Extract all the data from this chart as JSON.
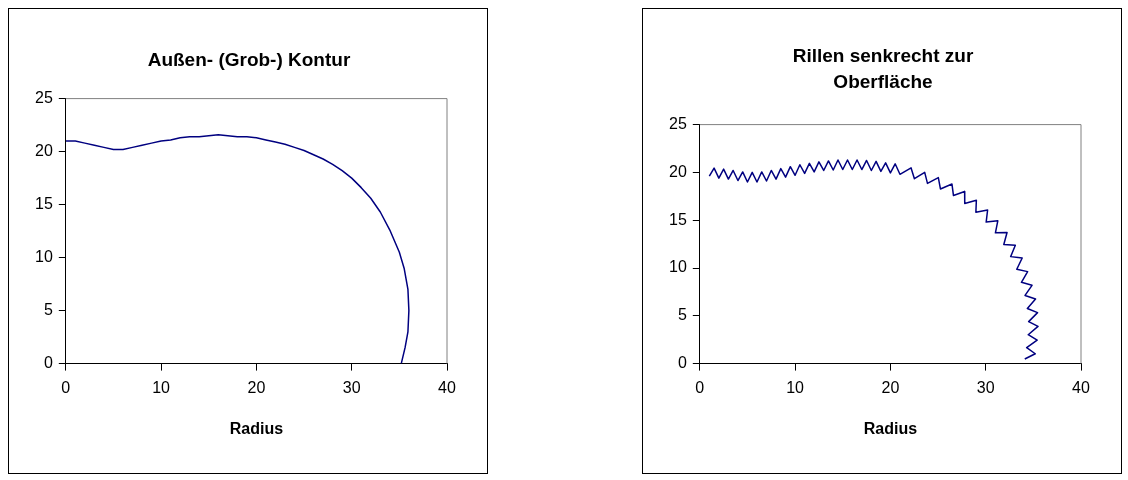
{
  "chart_data": [
    {
      "type": "line",
      "title": "Außen- (Grob-) Kontur",
      "xlabel": "Radius",
      "xlim": [
        0,
        40
      ],
      "xticks": [
        0,
        10,
        20,
        30,
        40
      ],
      "ylim": [
        0,
        25
      ],
      "yticks": [
        0,
        5,
        10,
        15,
        20,
        25
      ],
      "grid": false,
      "legend": false,
      "marker": "none",
      "line_style": "solid",
      "series": [
        {
          "color": "#000080",
          "x": [
            0,
            1,
            2,
            3,
            4,
            5,
            6,
            7,
            8,
            9,
            10,
            11,
            12,
            13,
            14,
            15,
            16,
            17,
            18,
            19,
            20,
            21,
            22,
            23,
            24,
            25,
            26,
            27,
            28,
            29,
            30,
            31,
            32,
            33,
            34,
            35,
            35.5,
            35.9,
            36,
            35.9,
            35.6,
            35.2
          ],
          "values": [
            21,
            21,
            20.8,
            20.6,
            20.4,
            20.2,
            20.2,
            20.4,
            20.6,
            20.8,
            21,
            21.1,
            21.3,
            21.4,
            21.4,
            21.5,
            21.6,
            21.5,
            21.4,
            21.4,
            21.3,
            21.1,
            20.9,
            20.7,
            20.4,
            20.1,
            19.7,
            19.3,
            18.8,
            18.2,
            17.5,
            16.6,
            15.6,
            14.3,
            12.6,
            10.5,
            9,
            7,
            5,
            3,
            1.5,
            0
          ]
        }
      ]
    },
    {
      "type": "line",
      "title": "Rillen senkrecht zur Oberfläche",
      "xlabel": "Radius",
      "xlim": [
        0,
        40
      ],
      "xticks": [
        0,
        10,
        20,
        30,
        40
      ],
      "ylim": [
        0,
        25
      ],
      "yticks": [
        0,
        5,
        10,
        15,
        20,
        25
      ],
      "grid": false,
      "legend": false,
      "marker": "none",
      "line_style": "solid",
      "series": [
        {
          "color": "#000080",
          "x": [
            1.0,
            1.5,
            2.0,
            2.5,
            3.0,
            3.5,
            4.0,
            4.5,
            5.0,
            5.5,
            6.0,
            6.5,
            7.0,
            7.5,
            8.0,
            8.5,
            9.0,
            9.5,
            10.0,
            10.5,
            11.0,
            11.5,
            12.0,
            12.5,
            13.0,
            13.5,
            14.0,
            14.5,
            15.0,
            15.5,
            16.0,
            16.5,
            17.0,
            17.5,
            18.0,
            18.5,
            19.0,
            19.5,
            20.0,
            20.5,
            21.0,
            22.17,
            22.52,
            23.6,
            23.89,
            25.03,
            25.25,
            26.46,
            26.62,
            27.79,
            27.8,
            29.02,
            28.97,
            30.2,
            30.05,
            31.27,
            31.02,
            32.24,
            31.9,
            33.11,
            32.62,
            33.83,
            33.26,
            34.4,
            33.75,
            34.86,
            34.13,
            35.23,
            34.37,
            35.44,
            34.51,
            35.49,
            34.46,
            35.4,
            34.3,
            35.2,
            34.1
          ],
          "values": [
            19.6,
            20.45,
            19.4,
            20.35,
            19.3,
            20.2,
            19.15,
            20.05,
            19.0,
            20.0,
            19.0,
            20.05,
            19.1,
            20.2,
            19.3,
            20.4,
            19.5,
            20.6,
            19.7,
            20.8,
            19.9,
            20.95,
            20.05,
            21.1,
            20.2,
            21.2,
            20.25,
            21.3,
            20.3,
            21.3,
            20.3,
            21.3,
            20.3,
            21.25,
            20.2,
            21.15,
            20.1,
            21.0,
            19.95,
            20.9,
            19.8,
            20.47,
            19.34,
            20.0,
            18.85,
            19.45,
            18.27,
            18.78,
            17.58,
            18.01,
            16.75,
            17.09,
            15.83,
            16.07,
            14.8,
            14.94,
            13.68,
            13.71,
            12.46,
            12.38,
            11.19,
            11.05,
            9.87,
            9.62,
            8.5,
            8.19,
            7.13,
            6.76,
            5.76,
            5.33,
            4.39,
            3.9,
            3.02,
            2.45,
            1.66,
            1.03,
            0.48
          ]
        }
      ]
    }
  ]
}
